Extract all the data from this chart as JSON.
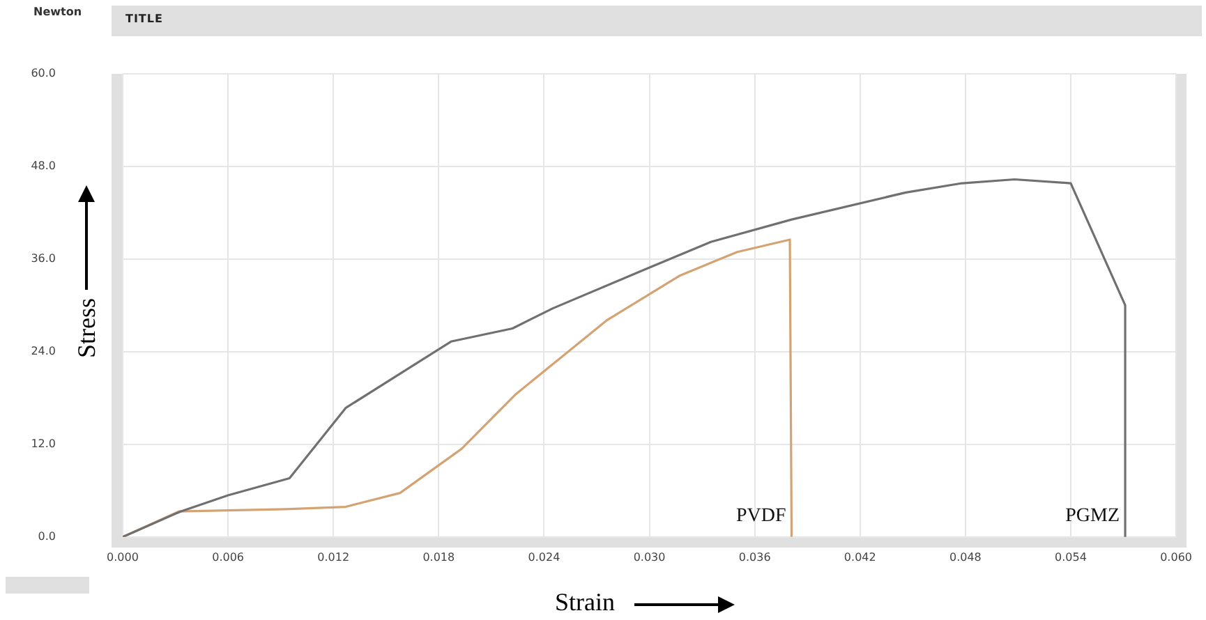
{
  "chart_data": {
    "type": "line",
    "title": "TITLE",
    "xlabel": "Strain",
    "ylabel": "Stress",
    "annotations": [
      "Newton"
    ],
    "series": [
      {
        "name": "PGMZ",
        "color": "#707070",
        "x": [
          0,
          0.0033,
          0.006,
          0.0095,
          0.0127,
          0.0187,
          0.0222,
          0.0245,
          0.0297,
          0.0335,
          0.0381,
          0.0446,
          0.0478,
          0.0508,
          0.054,
          0.0571,
          0.0571
        ],
        "values": [
          0,
          3.3,
          5.4,
          7.6,
          16.7,
          25.3,
          27.0,
          29.6,
          34.6,
          38.2,
          41.1,
          44.6,
          45.8,
          46.3,
          45.8,
          30.0,
          0
        ]
      },
      {
        "name": "PVDF",
        "color": "#d4a373",
        "x": [
          0,
          0.0032,
          0.0093,
          0.0127,
          0.0158,
          0.0193,
          0.0224,
          0.0276,
          0.0317,
          0.035,
          0.038,
          0.0381
        ],
        "values": [
          0,
          3.3,
          3.6,
          3.9,
          5.7,
          11.4,
          18.5,
          28.1,
          33.8,
          36.9,
          38.5,
          0
        ]
      }
    ],
    "xlim": [
      0,
      0.06
    ],
    "xticks": [
      {
        "value": 0,
        "label": "0.000"
      },
      {
        "value": 0.006,
        "label": "0.006"
      },
      {
        "value": 0.012,
        "label": "0.012"
      },
      {
        "value": 0.018,
        "label": "0.018"
      },
      {
        "value": 0.024,
        "label": "0.024"
      },
      {
        "value": 0.03,
        "label": "0.030"
      },
      {
        "value": 0.036,
        "label": "0.036"
      },
      {
        "value": 0.042,
        "label": "0.042"
      },
      {
        "value": 0.048,
        "label": "0.048"
      },
      {
        "value": 0.054,
        "label": "0.054"
      },
      {
        "value": 0.06,
        "label": "0.060"
      }
    ],
    "ylim": [
      0,
      60
    ],
    "yticks": [
      {
        "value": 0,
        "label": "0.0"
      },
      {
        "value": 12,
        "label": "12.0"
      },
      {
        "value": 24,
        "label": "24.0"
      },
      {
        "value": 36,
        "label": "36.0"
      },
      {
        "value": 48,
        "label": "48.0"
      },
      {
        "value": 60,
        "label": "60.0"
      }
    ],
    "grid": true,
    "marker": "none",
    "line_style": "solid",
    "legend": false
  }
}
